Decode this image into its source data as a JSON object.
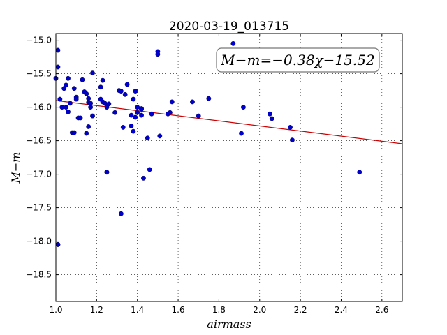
{
  "chart_data": {
    "type": "scatter",
    "title": "2020-03-19_013715",
    "xlabel": "airmass",
    "ylabel": "M−m",
    "xlim": [
      1.0,
      2.7
    ],
    "ylim": [
      -14.9,
      -18.9
    ],
    "y_inverted": true,
    "grid": true,
    "x_ticks": [
      "1.0",
      "1.2",
      "1.4",
      "1.6",
      "1.8",
      "2.0",
      "2.2",
      "2.4",
      "2.6"
    ],
    "y_ticks": [
      "−15.0",
      "−15.5",
      "−16.0",
      "−16.5",
      "−17.0",
      "−17.5",
      "−18.0",
      "−18.5"
    ],
    "annotation": "M−m=−0.38χ−15.52",
    "annotation_position": "top-right",
    "fit": {
      "slope": -0.38,
      "intercept": -15.52,
      "color": "#cc0000"
    },
    "point_color": "#0000cc",
    "x": [
      1.0,
      1.01,
      1.01,
      1.02,
      1.01,
      1.03,
      1.04,
      1.05,
      1.06,
      1.05,
      1.06,
      1.07,
      1.08,
      1.09,
      1.09,
      1.1,
      1.1,
      1.11,
      1.12,
      1.13,
      1.14,
      1.15,
      1.15,
      1.16,
      1.16,
      1.16,
      1.17,
      1.17,
      1.18,
      1.18,
      1.22,
      1.22,
      1.23,
      1.23,
      1.24,
      1.25,
      1.25,
      1.26,
      1.25,
      1.29,
      1.31,
      1.32,
      1.33,
      1.34,
      1.35,
      1.37,
      1.37,
      1.38,
      1.38,
      1.39,
      1.39,
      1.4,
      1.4,
      1.42,
      1.42,
      1.42,
      1.45,
      1.46,
      1.47,
      1.5,
      1.5,
      1.51,
      1.55,
      1.56,
      1.57,
      1.67,
      1.7,
      1.75,
      1.87,
      1.92,
      1.91,
      2.05,
      2.06,
      2.15,
      2.16,
      2.49,
      1.01,
      1.32,
      1.25,
      1.43
    ],
    "y": [
      -15.57,
      -15.15,
      -15.4,
      -15.88,
      -18.05,
      -16.0,
      -15.72,
      -15.67,
      -15.57,
      -16.0,
      -16.07,
      -15.94,
      -16.38,
      -16.38,
      -15.72,
      -15.85,
      -15.88,
      -16.16,
      -16.16,
      -15.59,
      -15.77,
      -15.8,
      -16.39,
      -15.87,
      -15.93,
      -16.29,
      -16.0,
      -15.94,
      -15.49,
      -16.13,
      -15.7,
      -15.88,
      -15.6,
      -15.92,
      -15.94,
      -15.97,
      -16.0,
      -15.95,
      -16.97,
      -16.08,
      -15.75,
      -15.76,
      -16.3,
      -15.81,
      -15.66,
      -16.28,
      -16.12,
      -16.36,
      -15.88,
      -15.76,
      -16.15,
      -16.0,
      -16.08,
      -16.02,
      -16.12,
      -16.03,
      -16.46,
      -16.93,
      -16.1,
      -15.17,
      -15.21,
      -16.43,
      -16.1,
      -16.08,
      -15.92,
      -15.92,
      -16.13,
      -15.87,
      -15.05,
      -16.0,
      -16.39,
      -16.1,
      -16.17,
      -16.3,
      -16.49,
      -16.97,
      -18.05,
      -17.59,
      -16.97,
      -17.06
    ]
  }
}
